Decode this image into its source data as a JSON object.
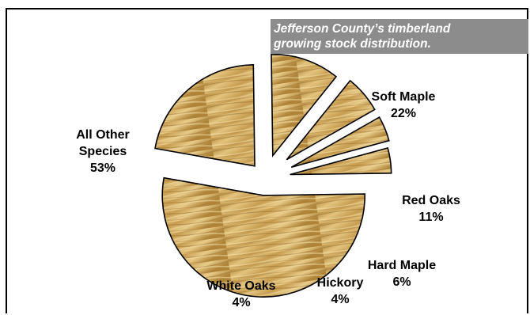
{
  "chart_data": {
    "type": "pie",
    "title": "Jefferson County’s timberland\ngrowing stock distribution.",
    "slices": [
      {
        "label": "Soft Maple",
        "line1": "Soft Maple",
        "line2": "22%",
        "value": 22
      },
      {
        "label": "Red Oaks",
        "line1": "Red Oaks",
        "line2": "11%",
        "value": 11
      },
      {
        "label": "Hard Maple",
        "line1": "Hard Maple",
        "line2": "6%",
        "value": 6
      },
      {
        "label": "Hickory",
        "line1": "Hickory",
        "line2": "4%",
        "value": 4
      },
      {
        "label": "White Oaks",
        "line1": "White Oaks",
        "line2": "4%",
        "value": 4
      },
      {
        "label": "All Other Species",
        "line1": "All Other",
        "line1b": "Species",
        "line2": "53%",
        "value": 53
      }
    ],
    "exploded": true,
    "fill_style": "wood-grain texture",
    "colors": {
      "wood_light": "#e2c47c",
      "wood_dark": "#a57c35",
      "title_bg": "#8c8c8c"
    }
  }
}
